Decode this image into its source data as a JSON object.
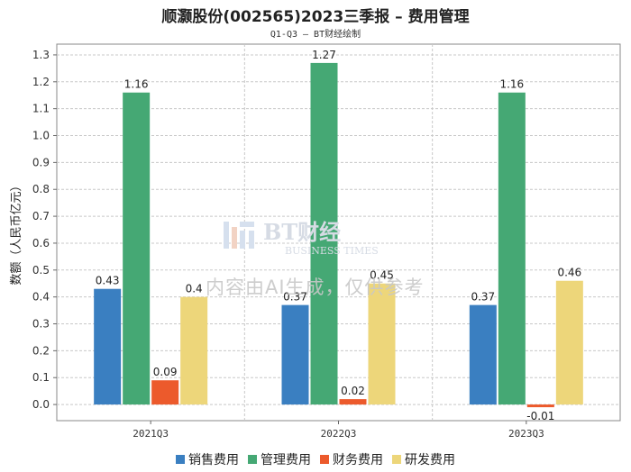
{
  "title": "顺灏股份(002565)2023三季报 – 费用管理",
  "subtitle": "Q1-Q3 – BT财经绘制",
  "watermark": {
    "brand": "BT财经",
    "brand_en": "BUSINESS TIMES",
    "notice": "内容由AI生成，仅供参考"
  },
  "chart_data": {
    "type": "bar",
    "title": "顺灏股份(002565)2023三季报 – 费用管理",
    "subtitle": "Q1-Q3 – BT财经绘制",
    "ylabel": "数额（人民币亿元）",
    "xlabel": "",
    "categories": [
      "2021Q3",
      "2022Q3",
      "2023Q3"
    ],
    "ylim": [
      -0.06,
      1.34
    ],
    "yticks": [
      0.0,
      0.1,
      0.2,
      0.3,
      0.4,
      0.5,
      0.6,
      0.7,
      0.8,
      0.9,
      1.0,
      1.1,
      1.2,
      1.3
    ],
    "grid": true,
    "legend_position": "bottom",
    "series": [
      {
        "name": "销售费用",
        "color": "#3a7fc1",
        "values": [
          0.43,
          0.37,
          0.37
        ],
        "labels": [
          "0.43",
          "0.37",
          "0.37"
        ]
      },
      {
        "name": "管理费用",
        "color": "#45a874",
        "values": [
          1.16,
          1.27,
          1.16
        ],
        "labels": [
          "1.16",
          "1.27",
          "1.16"
        ]
      },
      {
        "name": "财务费用",
        "color": "#ec5a2c",
        "values": [
          0.09,
          0.02,
          -0.01
        ],
        "labels": [
          "0.09",
          "0.02",
          "-0.01"
        ]
      },
      {
        "name": "研发费用",
        "color": "#edd67a",
        "values": [
          0.4,
          0.45,
          0.46
        ],
        "labels": [
          "0.4",
          "0.45",
          "0.46"
        ]
      }
    ]
  }
}
